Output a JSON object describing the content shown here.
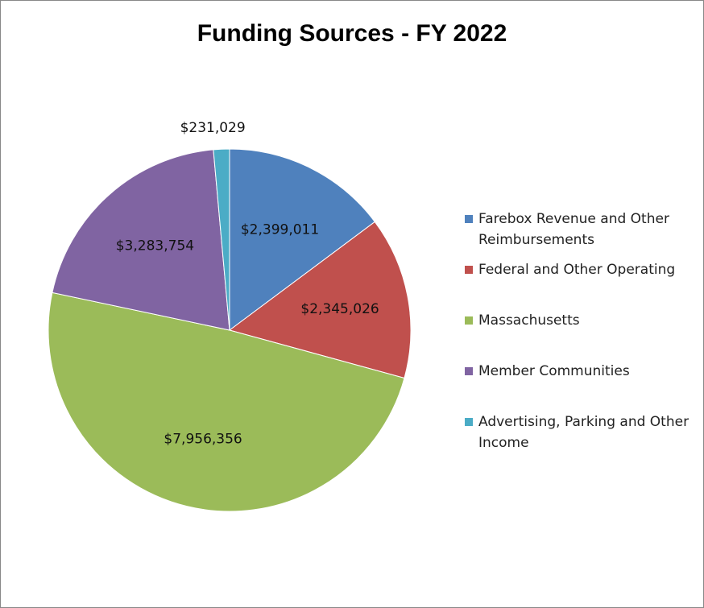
{
  "chart_data": {
    "type": "pie",
    "title": "Funding Sources - FY 2022",
    "categories": [
      "Farebox Revenue and Other Reimbursements",
      "Federal and Other Operating",
      "Massachusetts",
      "Member Communities",
      "Advertising, Parking and Other Income"
    ],
    "values": [
      2399011,
      2345026,
      7956356,
      3283754,
      231029
    ],
    "value_labels": [
      "$2,399,011",
      "$2,345,026",
      "$7,956,356",
      "$3,283,754",
      "$231,029"
    ],
    "colors": [
      "#4f81bd",
      "#c0504d",
      "#9bbb59",
      "#8064a2",
      "#4bacc6"
    ],
    "legend": "right"
  }
}
